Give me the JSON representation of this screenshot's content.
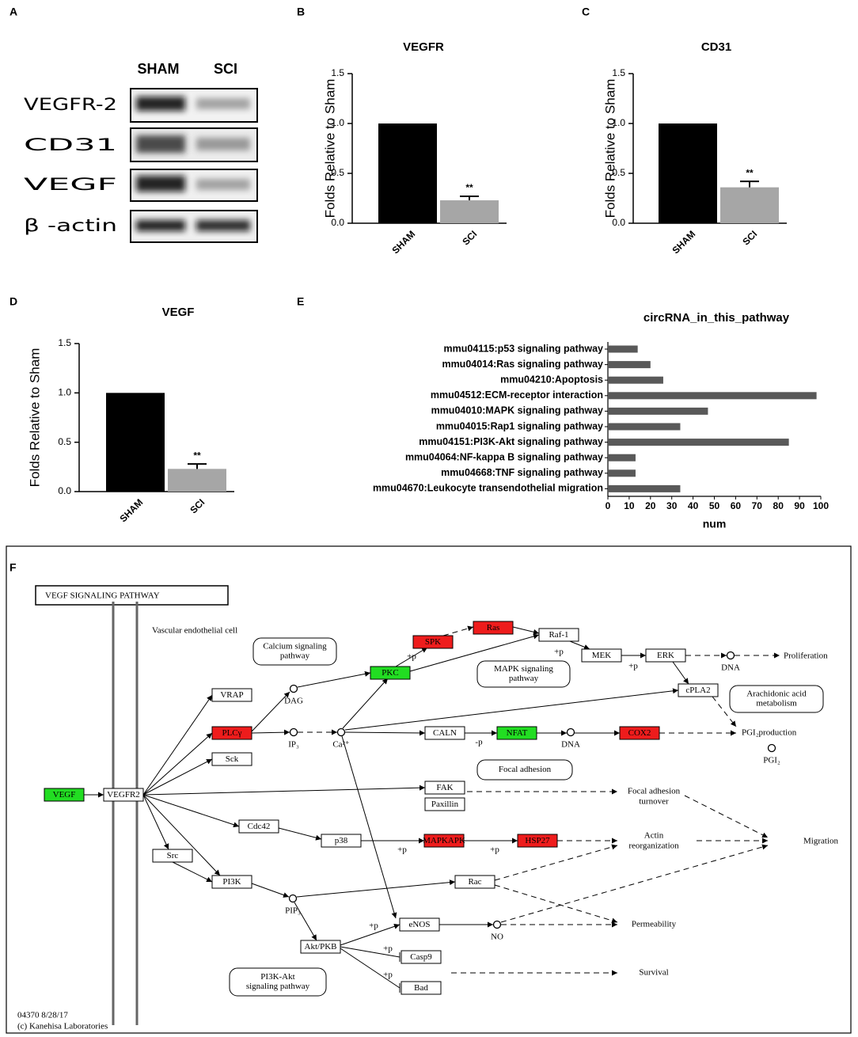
{
  "western_blot": {
    "panel": "A",
    "columns": [
      "SHAM",
      "SCI"
    ],
    "rows": [
      "VEGFR-2",
      "CD31",
      "VEGF",
      "β -actin"
    ]
  },
  "chart_data": [
    {
      "panel": "B",
      "type": "bar",
      "title": "VEGFR",
      "ylabel": "Folds Relative to Sham",
      "categories": [
        "SHAM",
        "SCI"
      ],
      "values": [
        1.0,
        0.23
      ],
      "errors": [
        null,
        0.04
      ],
      "significance": [
        null,
        "**"
      ],
      "colors": [
        "#000000",
        "#a6a6a6"
      ],
      "ylim": [
        0,
        1.5
      ],
      "yticks": [
        {
          "value": 0,
          "label": "0.0"
        },
        0.5,
        {
          "value": 1,
          "label": "1.0"
        },
        1.5
      ]
    },
    {
      "panel": "C",
      "type": "bar",
      "title": "CD31",
      "ylabel": "Folds Relative to Sham",
      "categories": [
        "SHAM",
        "SCI"
      ],
      "values": [
        1.0,
        0.36
      ],
      "errors": [
        null,
        0.06
      ],
      "significance": [
        null,
        "**"
      ],
      "colors": [
        "#000000",
        "#a6a6a6"
      ],
      "ylim": [
        0,
        1.5
      ],
      "yticks": [
        {
          "value": 0,
          "label": "0.0"
        },
        0.5,
        {
          "value": 1,
          "label": "1.0"
        },
        1.5
      ]
    },
    {
      "panel": "D",
      "type": "bar",
      "title": "VEGF",
      "ylabel": "Folds Relative to Sham",
      "categories": [
        "SHAM",
        "SCI"
      ],
      "values": [
        1.0,
        0.23
      ],
      "errors": [
        null,
        0.05
      ],
      "significance": [
        null,
        "**"
      ],
      "colors": [
        "#000000",
        "#a6a6a6"
      ],
      "ylim": [
        0,
        1.5
      ],
      "yticks": [
        {
          "value": 0,
          "label": "0.0"
        },
        0.5,
        {
          "value": 1,
          "label": "1.0"
        },
        1.5
      ]
    },
    {
      "panel": "E",
      "type": "barh",
      "title": "circRNA_in_this_pathway",
      "xlabel": "num",
      "categories": [
        "mmu04115:p53 signaling pathway",
        "mmu04014:Ras signaling pathway",
        "mmu04210:Apoptosis",
        "mmu04512:ECM-receptor interaction",
        "mmu04010:MAPK signaling pathway",
        "mmu04015:Rap1 signaling pathway",
        "mmu04151:PI3K-Akt signaling pathway",
        "mmu04064:NF-kappa B signaling pathway",
        "mmu04668:TNF signaling pathway",
        "mmu04670:Leukocyte transendothelial migration"
      ],
      "values": [
        14,
        20,
        26,
        98,
        47,
        34,
        85,
        13,
        13,
        34
      ],
      "color": "#595959",
      "xlim": [
        0,
        100
      ],
      "xticks": [
        0,
        10,
        20,
        30,
        40,
        50,
        60,
        70,
        80,
        90,
        100
      ]
    }
  ],
  "pathway_diagram": {
    "panel": "F",
    "title": "VEGF SIGNALING PATHWAY",
    "genes": [
      {
        "label": "VEGF",
        "color": "#22dd22"
      },
      {
        "label": "VEGFR2",
        "color": "#ffffff"
      },
      {
        "label": "VRAP",
        "color": "#ffffff"
      },
      {
        "label": "PLCγ",
        "color": "#ee1c1c"
      },
      {
        "label": "Sck",
        "color": "#ffffff"
      },
      {
        "label": "Src",
        "color": "#ffffff"
      },
      {
        "label": "Cdc42",
        "color": "#ffffff"
      },
      {
        "label": "PI3K",
        "color": "#ffffff"
      },
      {
        "label": "PKC",
        "color": "#22dd22"
      },
      {
        "label": "SPK",
        "color": "#ee1c1c"
      },
      {
        "label": "Ras",
        "color": "#ee1c1c"
      },
      {
        "label": "Raf-1",
        "color": "#ffffff"
      },
      {
        "label": "MEK",
        "color": "#ffffff"
      },
      {
        "label": "ERK",
        "color": "#ffffff"
      },
      {
        "label": "cPLA2",
        "color": "#ffffff"
      },
      {
        "label": "CALN",
        "color": "#ffffff"
      },
      {
        "label": "NFAT",
        "color": "#22dd22"
      },
      {
        "label": "COX2",
        "color": "#ee1c1c"
      },
      {
        "label": "FAK",
        "color": "#ffffff"
      },
      {
        "label": "Paxillin",
        "color": "#ffffff"
      },
      {
        "label": "p38",
        "color": "#ffffff"
      },
      {
        "label": "MAPKAPK",
        "color": "#ee1c1c"
      },
      {
        "label": "HSP27",
        "color": "#ee1c1c"
      },
      {
        "label": "Rac",
        "color": "#ffffff"
      },
      {
        "label": "eNOS",
        "color": "#ffffff"
      },
      {
        "label": "Akt/PKB",
        "color": "#ffffff"
      },
      {
        "label": "Casp9",
        "color": "#ffffff"
      },
      {
        "label": "Bad",
        "color": "#ffffff"
      }
    ],
    "compounds": [
      "DAG",
      "IP₃",
      "Ca²⁺",
      "DNA",
      "DNA",
      "PGI₂",
      "PIP₃",
      "NO"
    ],
    "maps": [
      {
        "lines": [
          "Calcium signaling",
          "pathway"
        ]
      },
      {
        "lines": [
          "MAPK signaling",
          "pathway"
        ]
      },
      {
        "lines": [
          "Arachidonic acid",
          "metabolism"
        ]
      },
      {
        "lines": [
          "Focal adhesion"
        ]
      },
      {
        "lines": [
          "PI3K-Akt",
          "signaling pathway"
        ]
      }
    ],
    "labels": [
      "Vascular endothelial cell",
      "Proliferation",
      "PGI₂production",
      "Focal adhesion",
      "turnover",
      "Actin",
      "reorganization",
      "Migration",
      "Permeability",
      "Survival",
      "+p",
      "+p",
      "+p",
      "-p",
      "+p",
      "+p",
      "+p",
      "+p",
      "+p",
      "04370 8/28/17",
      "(c) Kanehisa Laboratories"
    ]
  }
}
